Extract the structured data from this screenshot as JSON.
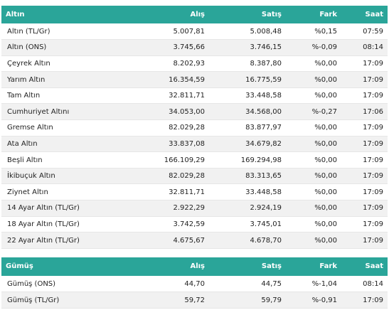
{
  "gold": {
    "headers": {
      "name": "Altın",
      "buy": "Alış",
      "sell": "Satış",
      "change": "Fark",
      "time": "Saat"
    },
    "rows": [
      {
        "name": "Altın (TL/Gr)",
        "buy": "5.007,81",
        "sell": "5.008,48",
        "change": "%0,15",
        "time": "07:59"
      },
      {
        "name": "Altın (ONS)",
        "buy": "3.745,66",
        "sell": "3.746,15",
        "change": "%-0,09",
        "time": "08:14"
      },
      {
        "name": "Çeyrek Altın",
        "buy": "8.202,93",
        "sell": "8.387,80",
        "change": "%0,00",
        "time": "17:09"
      },
      {
        "name": "Yarım Altın",
        "buy": "16.354,59",
        "sell": "16.775,59",
        "change": "%0,00",
        "time": "17:09"
      },
      {
        "name": "Tam Altın",
        "buy": "32.811,71",
        "sell": "33.448,58",
        "change": "%0,00",
        "time": "17:09"
      },
      {
        "name": "Cumhuriyet Altını",
        "buy": "34.053,00",
        "sell": "34.568,00",
        "change": "%-0,27",
        "time": "17:06"
      },
      {
        "name": "Gremse Altın",
        "buy": "82.029,28",
        "sell": "83.877,97",
        "change": "%0,00",
        "time": "17:09"
      },
      {
        "name": "Ata Altın",
        "buy": "33.837,08",
        "sell": "34.679,82",
        "change": "%0,00",
        "time": "17:09"
      },
      {
        "name": "Beşli Altın",
        "buy": "166.109,29",
        "sell": "169.294,98",
        "change": "%0,00",
        "time": "17:09"
      },
      {
        "name": "İkibuçuk Altın",
        "buy": "82.029,28",
        "sell": "83.313,65",
        "change": "%0,00",
        "time": "17:09"
      },
      {
        "name": "Ziynet Altın",
        "buy": "32.811,71",
        "sell": "33.448,58",
        "change": "%0,00",
        "time": "17:09"
      },
      {
        "name": "14 Ayar Altın (TL/Gr)",
        "buy": "2.922,29",
        "sell": "2.924,19",
        "change": "%0,00",
        "time": "17:09"
      },
      {
        "name": "18 Ayar Altın (TL/Gr)",
        "buy": "3.742,59",
        "sell": "3.745,01",
        "change": "%0,00",
        "time": "17:09"
      },
      {
        "name": "22 Ayar Altın (TL/Gr)",
        "buy": "4.675,67",
        "sell": "4.678,70",
        "change": "%0,00",
        "time": "17:09"
      }
    ]
  },
  "silver": {
    "headers": {
      "name": "Gümüş",
      "buy": "Alış",
      "sell": "Satış",
      "change": "Fark",
      "time": "Saat"
    },
    "rows": [
      {
        "name": "Gümüş (ONS)",
        "buy": "44,70",
        "sell": "44,75",
        "change": "%-1,04",
        "time": "08:14"
      },
      {
        "name": "Gümüş (TL/Gr)",
        "buy": "59,72",
        "sell": "59,79",
        "change": "%-0,91",
        "time": "17:09"
      }
    ]
  },
  "colors": {
    "header_bg": "#2aa599",
    "header_text": "#ffffff",
    "stripe": "#f1f1f1"
  }
}
